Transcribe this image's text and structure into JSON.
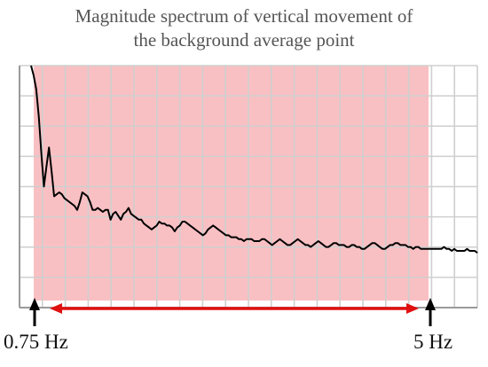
{
  "chart_data": {
    "type": "line",
    "title_lines": [
      "Magnitude spectrum of vertical movement of",
      "the background average point"
    ],
    "xlabel": "",
    "ylabel": "",
    "grid": true,
    "legend": "none",
    "series": [
      {
        "color": "#000000",
        "values": [
          1.0,
          0.95,
          0.88,
          0.74,
          0.55,
          0.38,
          0.48,
          0.58,
          0.46,
          0.33,
          0.34,
          0.35,
          0.34,
          0.32,
          0.31,
          0.3,
          0.29,
          0.28,
          0.26,
          0.3,
          0.35,
          0.34,
          0.33,
          0.3,
          0.26,
          0.26,
          0.27,
          0.26,
          0.25,
          0.26,
          0.26,
          0.21,
          0.24,
          0.25,
          0.23,
          0.21,
          0.24,
          0.25,
          0.27,
          0.24,
          0.23,
          0.22,
          0.21,
          0.21,
          0.19,
          0.18,
          0.17,
          0.16,
          0.17,
          0.18,
          0.2,
          0.19,
          0.19,
          0.18,
          0.18,
          0.17,
          0.15,
          0.17,
          0.18,
          0.2,
          0.2,
          0.19,
          0.18,
          0.17,
          0.16,
          0.15,
          0.14,
          0.13,
          0.14,
          0.16,
          0.17,
          0.18,
          0.17,
          0.16,
          0.15,
          0.14,
          0.13,
          0.13,
          0.12,
          0.12,
          0.12,
          0.11,
          0.11,
          0.1,
          0.11,
          0.11,
          0.11,
          0.1,
          0.1,
          0.1,
          0.11,
          0.11,
          0.1,
          0.09,
          0.08,
          0.09,
          0.1,
          0.11,
          0.1,
          0.09,
          0.08,
          0.08,
          0.09,
          0.1,
          0.11,
          0.1,
          0.09,
          0.08,
          0.08,
          0.07,
          0.08,
          0.09,
          0.1,
          0.09,
          0.08,
          0.07,
          0.07,
          0.08,
          0.09,
          0.09,
          0.08,
          0.08,
          0.08,
          0.07,
          0.07,
          0.08,
          0.08,
          0.07,
          0.07,
          0.06,
          0.06,
          0.07,
          0.08,
          0.09,
          0.09,
          0.08,
          0.07,
          0.06,
          0.06,
          0.07,
          0.08,
          0.08,
          0.09,
          0.09,
          0.08,
          0.08,
          0.08,
          0.07,
          0.07,
          0.06,
          0.07,
          0.07,
          0.06,
          0.06,
          0.06,
          0.06,
          0.06,
          0.06,
          0.06,
          0.06,
          0.06,
          0.07,
          0.06,
          0.06,
          0.05,
          0.06,
          0.05,
          0.05,
          0.05,
          0.05,
          0.06,
          0.05,
          0.05,
          0.05,
          0.04
        ]
      }
    ],
    "highlight_band": {
      "from_label": "0.75 Hz",
      "to_label": "5 Hz",
      "fill": "#f9c0c3",
      "arrow_color": "#e01010"
    },
    "grid_color": "#cfcfcf"
  }
}
